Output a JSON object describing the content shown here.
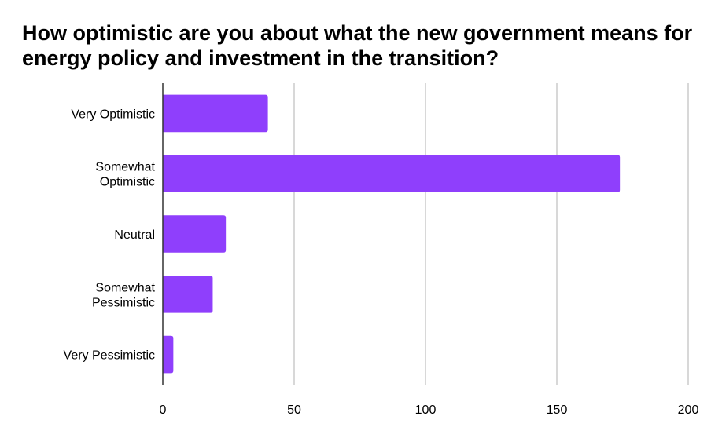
{
  "chart_data": {
    "type": "bar",
    "orientation": "horizontal",
    "title": "How optimistic are you about what the new government means for energy policy and investment in the transition?",
    "categories": [
      "Very Optimistic",
      "Somewhat Optimistic",
      "Neutral",
      "Somewhat Pessimistic",
      "Very Pessimistic"
    ],
    "values": [
      40,
      174,
      24,
      19,
      4
    ],
    "xlim": [
      0,
      200
    ],
    "xticks": [
      "0",
      "50",
      "100",
      "150",
      "200"
    ],
    "xlabel": "",
    "ylabel": "",
    "grid": true,
    "legend": "none",
    "bar_color": "#8f3ffc",
    "grid_color": "#cccccc",
    "axis_color": "#333333"
  }
}
